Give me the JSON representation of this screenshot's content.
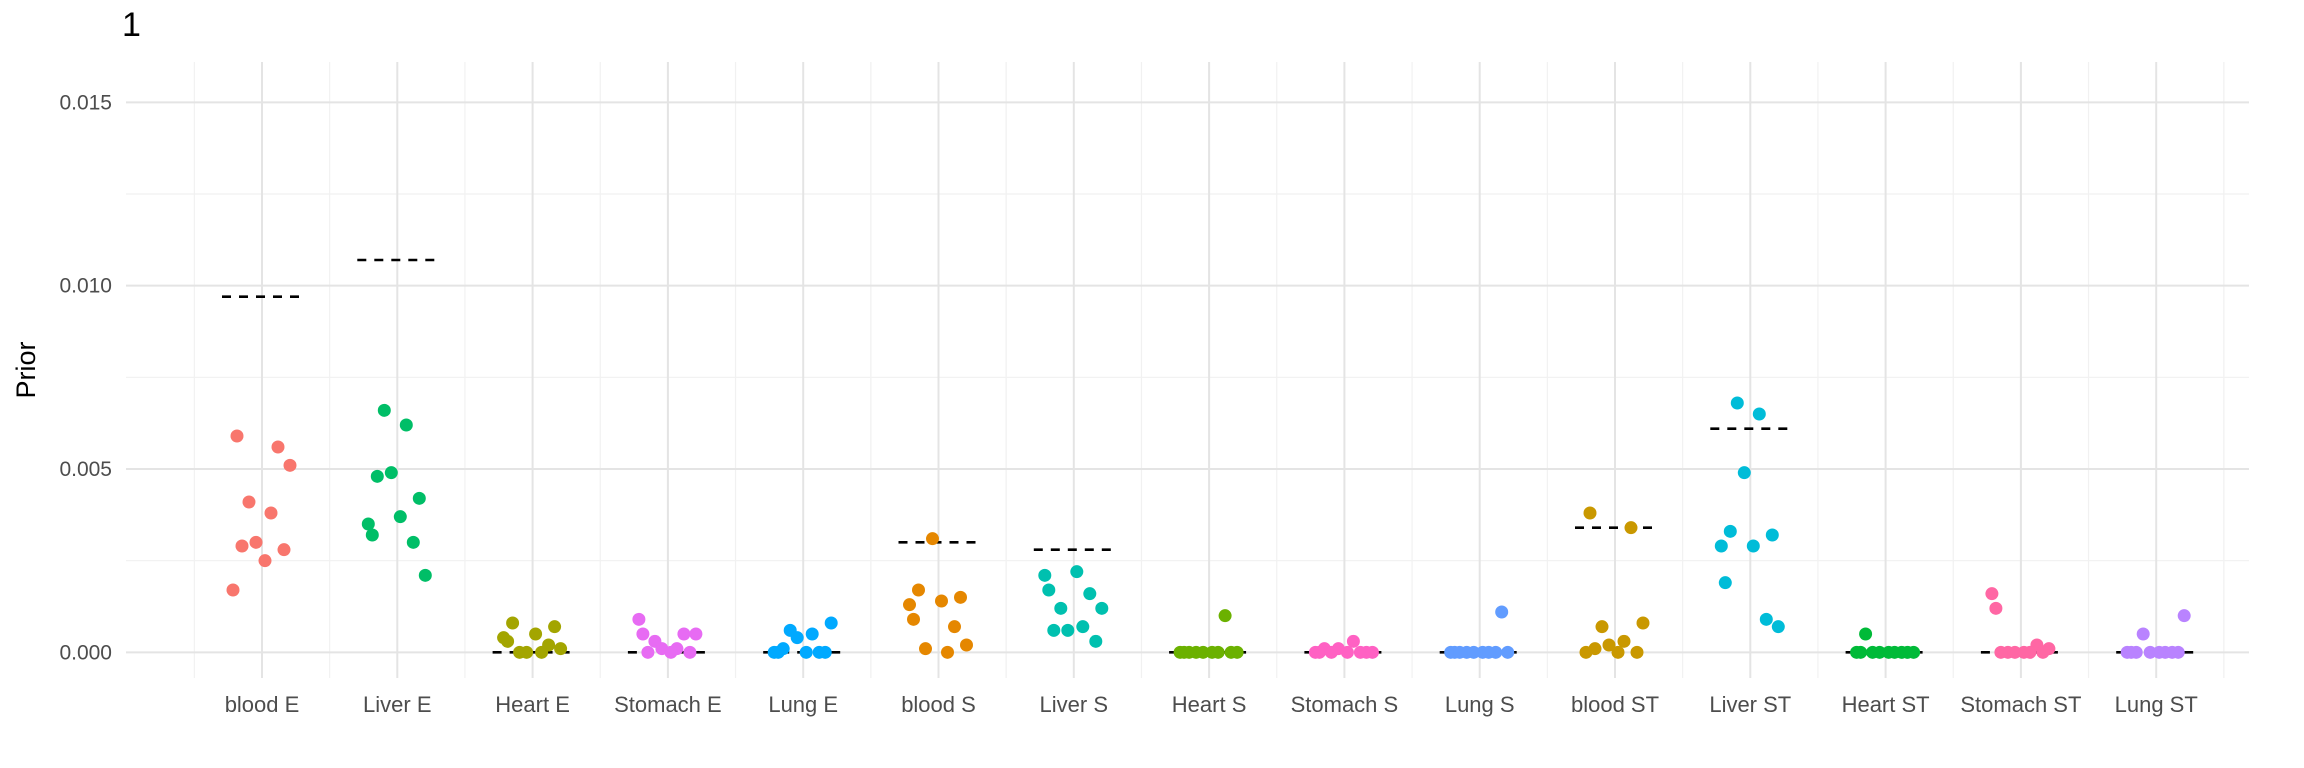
{
  "panel_tag": "1",
  "chart_data": {
    "type": "scatter",
    "title": "",
    "xlabel": "",
    "ylabel": "Prior",
    "ylim": [
      -0.0007,
      0.0161
    ],
    "yticks": [
      0.0,
      0.005,
      0.01,
      0.015
    ],
    "ytick_labels": [
      "0.000",
      "0.005",
      "0.010",
      "0.015"
    ],
    "grid": true,
    "legend": "none",
    "categories": [
      "blood E",
      "Liver E",
      "Heart E",
      "Stomach E",
      "Lung E",
      "blood S",
      "Liver S",
      "Heart S",
      "Stomach S",
      "Lung S",
      "blood ST",
      "Liver ST",
      "Heart ST",
      "Stomach ST",
      "Lung ST"
    ],
    "colors": [
      "#F8766D",
      "#00BE67",
      "#A3A500",
      "#E76BF3",
      "#00A9FF",
      "#E58700",
      "#00C0AF",
      "#6BB100",
      "#FF61C3",
      "#619CFF",
      "#C99800",
      "#00BCD8",
      "#00BA38",
      "#FF67A4",
      "#B983FF"
    ],
    "series": [
      {
        "category": "blood E",
        "values": [
          0.0059,
          0.0056,
          0.0051,
          0.0041,
          0.0038,
          0.003,
          0.0029,
          0.0028,
          0.0025,
          0.0017
        ],
        "reference": 0.0097
      },
      {
        "category": "Liver E",
        "values": [
          0.0066,
          0.0062,
          0.0049,
          0.0048,
          0.0042,
          0.0037,
          0.0035,
          0.0032,
          0.003,
          0.0021
        ],
        "reference": 0.0107
      },
      {
        "category": "Heart E",
        "values": [
          0.0008,
          0.0007,
          0.0005,
          0.0004,
          0.0003,
          0.0002,
          0.0001,
          0.0,
          0.0,
          0.0
        ],
        "reference": 0.0
      },
      {
        "category": "Stomach E",
        "values": [
          0.0009,
          0.0005,
          0.0005,
          0.0005,
          0.0003,
          0.0001,
          0.0001,
          0.0,
          0.0,
          0.0
        ],
        "reference": 0.0
      },
      {
        "category": "Lung E",
        "values": [
          0.0008,
          0.0006,
          0.0005,
          0.0004,
          0.0001,
          0.0,
          0.0,
          0.0,
          0.0,
          0.0
        ],
        "reference": 0.0
      },
      {
        "category": "blood S",
        "values": [
          0.0031,
          0.0017,
          0.0015,
          0.0014,
          0.0013,
          0.0009,
          0.0007,
          0.0002,
          0.0001,
          0.0
        ],
        "reference": 0.003
      },
      {
        "category": "Liver S",
        "values": [
          0.0022,
          0.0021,
          0.0017,
          0.0016,
          0.0012,
          0.0012,
          0.0007,
          0.0006,
          0.0006,
          0.0003
        ],
        "reference": 0.0028
      },
      {
        "category": "Heart S",
        "values": [
          0.001,
          0.0,
          0.0,
          0.0,
          0.0,
          0.0,
          0.0,
          0.0,
          0.0,
          0.0
        ],
        "reference": 0.0
      },
      {
        "category": "Stomach S",
        "values": [
          0.0003,
          0.0001,
          0.0001,
          0.0,
          0.0,
          0.0,
          0.0,
          0.0,
          0.0,
          0.0
        ],
        "reference": 0.0
      },
      {
        "category": "Lung S",
        "values": [
          0.0011,
          0.0,
          0.0,
          0.0,
          0.0,
          0.0,
          0.0,
          0.0,
          0.0,
          0.0
        ],
        "reference": 0.0
      },
      {
        "category": "blood ST",
        "values": [
          0.0038,
          0.0034,
          0.0008,
          0.0007,
          0.0003,
          0.0002,
          0.0001,
          0.0,
          0.0,
          0.0
        ],
        "reference": 0.0034
      },
      {
        "category": "Liver ST",
        "values": [
          0.0068,
          0.0065,
          0.0049,
          0.0033,
          0.0032,
          0.0029,
          0.0029,
          0.0019,
          0.0009,
          0.0007
        ],
        "reference": 0.0061
      },
      {
        "category": "Heart ST",
        "values": [
          0.0005,
          0.0,
          0.0,
          0.0,
          0.0,
          0.0,
          0.0,
          0.0,
          0.0,
          0.0
        ],
        "reference": 0.0
      },
      {
        "category": "Stomach ST",
        "values": [
          0.0016,
          0.0012,
          0.0002,
          0.0001,
          0.0,
          0.0,
          0.0,
          0.0,
          0.0,
          0.0
        ],
        "reference": 0.0
      },
      {
        "category": "Lung ST",
        "values": [
          0.001,
          0.0005,
          0.0,
          0.0,
          0.0,
          0.0,
          0.0,
          0.0,
          0.0,
          0.0
        ],
        "reference": 0.0
      }
    ]
  }
}
